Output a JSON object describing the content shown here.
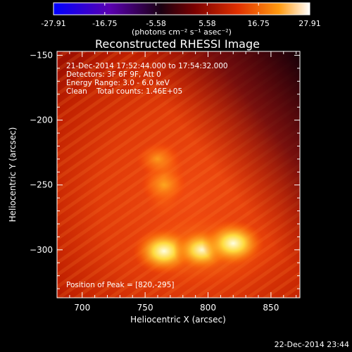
{
  "colorbar": {
    "tick_labels": [
      "-27.91",
      "-16.75",
      "-5.58",
      "5.58",
      "16.75",
      "27.91"
    ],
    "unit_label": "(photons cm⁻² s⁻¹ asec⁻²)",
    "range": [
      -27.91,
      27.91
    ],
    "colors": [
      "#0000ff",
      "#5a00b0",
      "#1a0010",
      "#7a0000",
      "#e03000",
      "#ff9a10",
      "#ffffff"
    ]
  },
  "chart_data": {
    "type": "heatmap",
    "title": "Reconstructed RHESSI Image",
    "xlabel": "Heliocentric X (arcsec)",
    "ylabel": "Heliocentric Y (arcsec)",
    "xlim": [
      680,
      873
    ],
    "ylim": [
      -337,
      -147
    ],
    "x_ticks": [
      700,
      750,
      800,
      850
    ],
    "y_ticks": [
      -150,
      -200,
      -250,
      -300
    ],
    "x_tick_labels": [
      "700",
      "750",
      "800",
      "850"
    ],
    "y_tick_labels": [
      "−150",
      "−200",
      "−250",
      "−300"
    ],
    "info_lines": [
      "21-Dec-2014 17:52:44.000 to 17:54:32.000",
      "Detectors: 3F 6F 9F, Att 0",
      "Energy Range: 3.0 - 6.0 keV",
      "Clean    Total counts: 1.46E+05"
    ],
    "peak_label": "Position of Peak = [820,-295]",
    "peak": [
      820,
      -295
    ],
    "sources": [
      {
        "x": 765,
        "y": -301,
        "intensity": 1.0
      },
      {
        "x": 795,
        "y": -300,
        "intensity": 0.85
      },
      {
        "x": 820,
        "y": -295,
        "intensity": 1.0
      },
      {
        "x": 765,
        "y": -250,
        "intensity": 0.6
      },
      {
        "x": 760,
        "y": -230,
        "intensity": 0.5
      }
    ]
  },
  "footer": {
    "timestamp": "22-Dec-2014 23:44"
  }
}
